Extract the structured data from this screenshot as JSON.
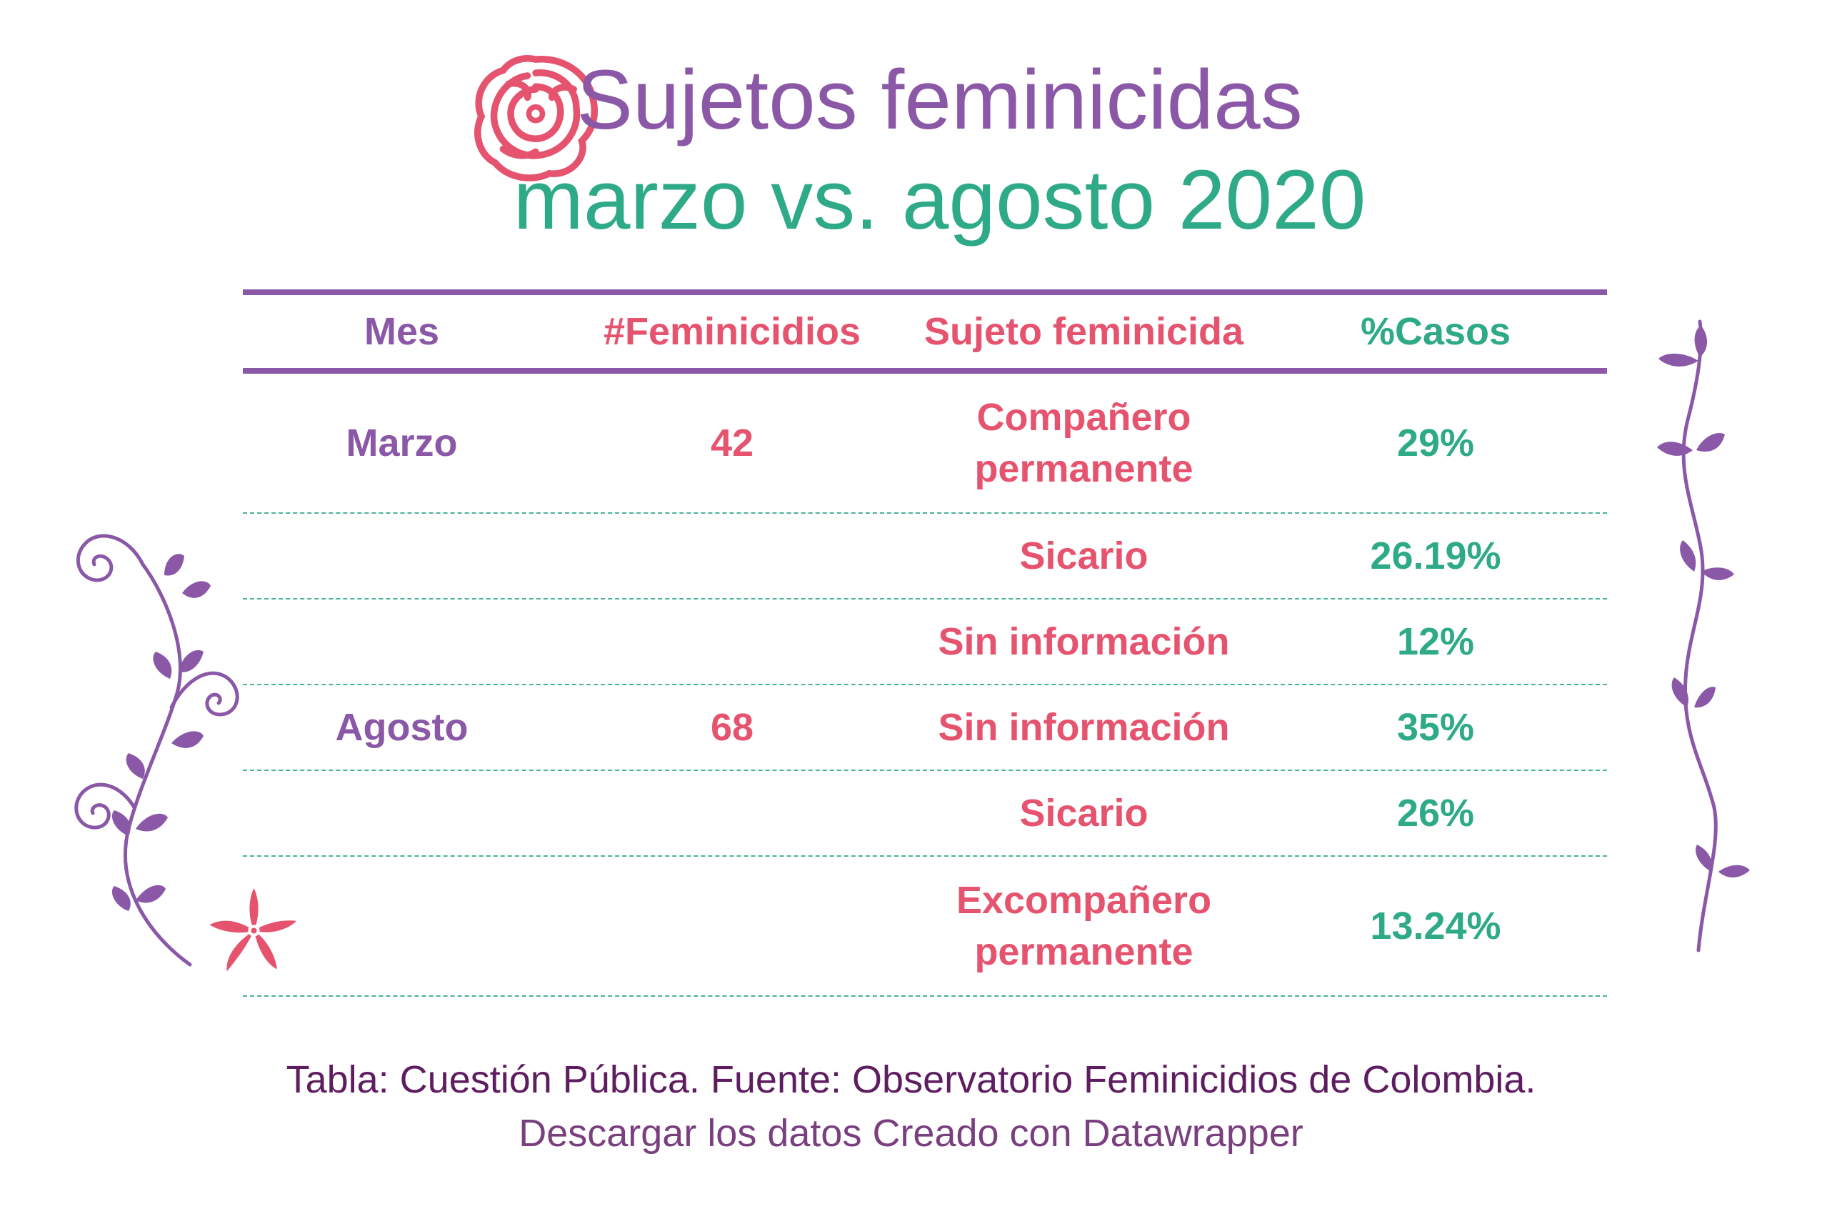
{
  "title": {
    "line1": "Sujetos feminicidas",
    "line2": "marzo vs. agosto 2020"
  },
  "table": {
    "headers": [
      "Mes",
      "#Feminicidios",
      "Sujeto feminicida",
      "%Casos"
    ],
    "rows": [
      {
        "mes": "Marzo",
        "feminicidios": "42",
        "sujeto": "Compañero permanente",
        "casos": "29%"
      },
      {
        "mes": "",
        "feminicidios": "",
        "sujeto": "Sicario",
        "casos": "26.19%"
      },
      {
        "mes": "",
        "feminicidios": "",
        "sujeto": "Sin información",
        "casos": "12%"
      },
      {
        "mes": "Agosto",
        "feminicidios": "68",
        "sujeto": "Sin información",
        "casos": "35%"
      },
      {
        "mes": "",
        "feminicidios": "",
        "sujeto": "Sicario",
        "casos": "26%"
      },
      {
        "mes": "",
        "feminicidios": "",
        "sujeto": "Excompañero permanente",
        "casos": "13.24%"
      }
    ]
  },
  "footer": {
    "source": "Tabla: Cuestión Pública. Fuente: Observatorio Feminicidios de Colombia.",
    "links": "Descargar los datos Creado con Datawrapper"
  },
  "icons": {
    "rose": "rose-icon",
    "vine_left": "vine-left-icon",
    "vine_right": "vine-right-icon",
    "flower": "flower-icon"
  },
  "colors": {
    "purple": "#8a58a6",
    "pink": "#e5536e",
    "green": "#2eaa88",
    "dark_purple": "#5e1d60"
  },
  "chart_data": {
    "type": "table",
    "title": "Sujetos feminicidas marzo vs. agosto 2020",
    "columns": [
      "Mes",
      "#Feminicidios",
      "Sujeto feminicida",
      "%Casos"
    ],
    "rows": [
      [
        "Marzo",
        42,
        "Compañero permanente",
        "29%"
      ],
      [
        "",
        "",
        "Sicario",
        "26.19%"
      ],
      [
        "",
        "",
        "Sin información",
        "12%"
      ],
      [
        "Agosto",
        68,
        "Sin información",
        "35%"
      ],
      [
        "",
        "",
        "Sicario",
        "26%"
      ],
      [
        "",
        "",
        "Excompañero permanente",
        "13.24%"
      ]
    ]
  }
}
